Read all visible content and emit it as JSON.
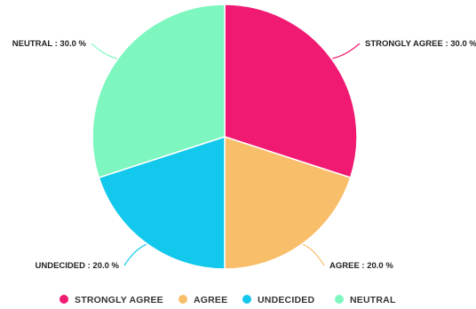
{
  "chart_data": {
    "type": "pie",
    "title": "",
    "legend_position": "bottom",
    "slices": [
      {
        "name": "STRONGLY AGREE",
        "value": 30.0,
        "color": "#F01A72",
        "label": "STRONGLY AGREE : 30.0 %"
      },
      {
        "name": "AGREE",
        "value": 20.0,
        "color": "#F8BE6A",
        "label": "AGREE : 20.0 %"
      },
      {
        "name": "UNDECIDED",
        "value": 20.0,
        "color": "#12C8EC",
        "label": "UNDECIDED : 20.0 %"
      },
      {
        "name": "NEUTRAL",
        "value": 30.0,
        "color": "#7DF7BF",
        "label": "NEUTRAL : 30.0 %"
      }
    ]
  }
}
